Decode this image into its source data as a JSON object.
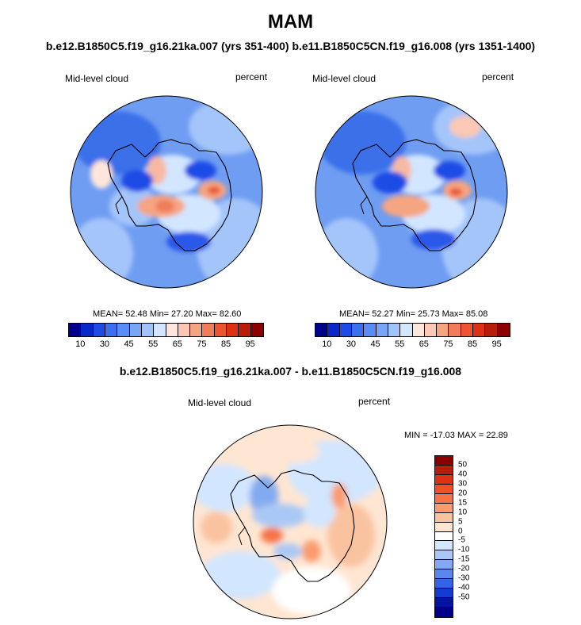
{
  "title": "MAM",
  "subtitle": "b.e12.B1850C5.f19_g16.21ka.007 (yrs 351-400) b.e11.B1850C5CN.f19_g16.008 (yrs 1351-1400)",
  "panels": [
    {
      "left_label": "Mid-level cloud",
      "right_label": "percent",
      "stats": "MEAN=  52.48  Min=  27.20  Max=  82.60"
    },
    {
      "left_label": "Mid-level cloud",
      "right_label": "percent",
      "stats": "MEAN=  52.27  Min=  25.73  Max=  85.08"
    }
  ],
  "colorbar": {
    "colors": [
      "#00008b",
      "#0a28c8",
      "#1e4be6",
      "#3c6ef0",
      "#5a8cf5",
      "#78a5f5",
      "#a0c3fa",
      "#d2e6ff",
      "#ffe6dc",
      "#fac8b4",
      "#f5a582",
      "#f07d5a",
      "#eb5532",
      "#dc3214",
      "#b41e0a",
      "#8b0000"
    ],
    "tick_labels": [
      "10",
      "30",
      "45",
      "55",
      "65",
      "75",
      "85",
      "95"
    ]
  },
  "diff": {
    "title": "b.e12.B1850C5.f19_g16.21ka.007 - b.e11.B1850C5CN.f19_g16.008",
    "left_label": "Mid-level cloud",
    "right_label": "percent",
    "stats": "MIN = -17.03 MAX =  22.89",
    "colors": [
      "#8b0000",
      "#b41e0a",
      "#dc3214",
      "#f05028",
      "#f57346",
      "#fa9b6e",
      "#fac3a0",
      "#ffe6d2",
      "#ffffff",
      "#d2e6ff",
      "#aac8f5",
      "#82aaf0",
      "#5a87eb",
      "#3264e6",
      "#143cd2",
      "#0014a0",
      "#00008b"
    ],
    "tick_labels": [
      "50",
      "40",
      "30",
      "20",
      "15",
      "10",
      "5",
      "0",
      "-5",
      "-10",
      "-15",
      "-20",
      "-30",
      "-40",
      "-50"
    ]
  }
}
